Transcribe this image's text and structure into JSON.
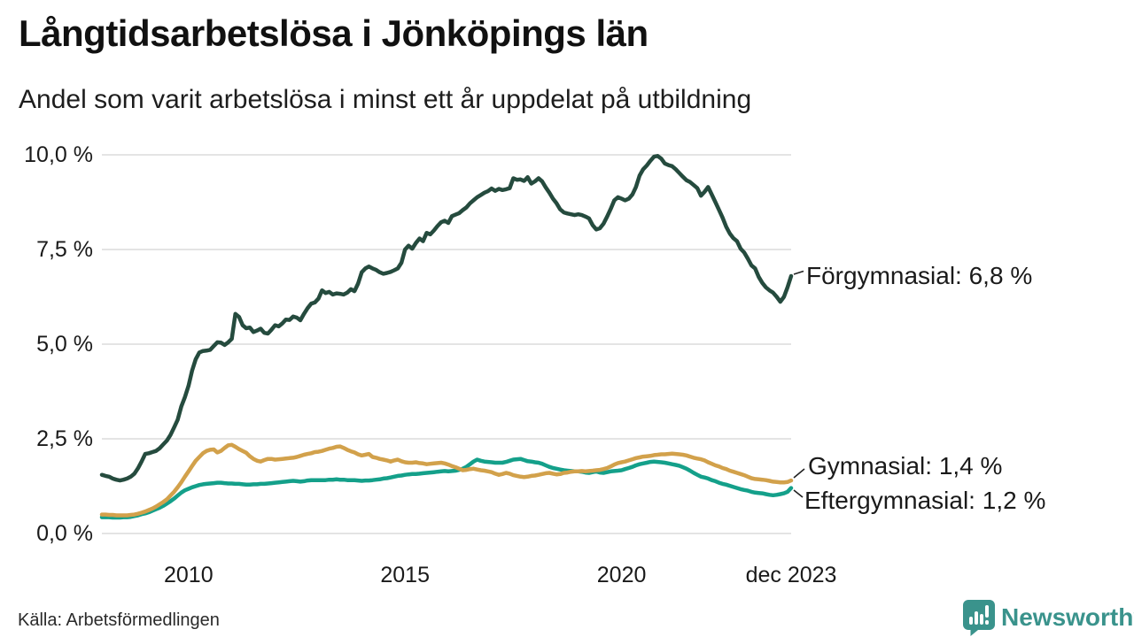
{
  "header": {
    "title": "Långtidsarbetslösa i Jönköpings län",
    "subtitle": "Andel som varit arbetslösa i minst ett år uppdelat på utbildning"
  },
  "footer": {
    "source": "Källa: Arbetsförmedlingen",
    "brand": "Newsworthy",
    "brand_color": "#3A938C",
    "logo_icon": "bar-chart-speech-bubble-icon"
  },
  "chart_data": {
    "type": "line",
    "x_start": "2008-01",
    "x_end": "2023-12",
    "x_interval": "month",
    "ylim": [
      0,
      10
    ],
    "grid": true,
    "y_ticks": [
      {
        "value": 0,
        "label": "0,0 %"
      },
      {
        "value": 2.5,
        "label": "2,5 %"
      },
      {
        "value": 5,
        "label": "5,0 %"
      },
      {
        "value": 7.5,
        "label": "7,5 %"
      },
      {
        "value": 10,
        "label": "10,0 %"
      }
    ],
    "x_ticks": [
      {
        "month_index": 24,
        "label": "2010"
      },
      {
        "month_index": 84,
        "label": "2015"
      },
      {
        "month_index": 144,
        "label": "2020"
      },
      {
        "month_index": 191,
        "label": "dec 2023"
      }
    ],
    "series": [
      {
        "name": "Förgymnasial",
        "label": "Förgymnasial: 6,8 %",
        "last_value": 6.8,
        "color": "#254B3E",
        "values": [
          1.55,
          1.52,
          1.5,
          1.45,
          1.42,
          1.4,
          1.42,
          1.45,
          1.5,
          1.58,
          1.72,
          1.9,
          2.1,
          2.12,
          2.15,
          2.18,
          2.25,
          2.35,
          2.45,
          2.6,
          2.8,
          3.0,
          3.35,
          3.6,
          3.9,
          4.3,
          4.6,
          4.78,
          4.82,
          4.83,
          4.85,
          4.95,
          5.05,
          5.04,
          4.98,
          5.05,
          5.14,
          5.8,
          5.72,
          5.5,
          5.42,
          5.44,
          5.32,
          5.36,
          5.41,
          5.3,
          5.28,
          5.38,
          5.5,
          5.47,
          5.55,
          5.65,
          5.64,
          5.73,
          5.7,
          5.63,
          5.8,
          5.95,
          6.07,
          6.1,
          6.2,
          6.42,
          6.35,
          6.38,
          6.31,
          6.34,
          6.33,
          6.31,
          6.36,
          6.45,
          6.4,
          6.6,
          6.9,
          7.0,
          7.05,
          7.0,
          6.96,
          6.9,
          6.86,
          6.88,
          6.91,
          6.95,
          7.0,
          7.15,
          7.5,
          7.6,
          7.52,
          7.67,
          7.79,
          7.72,
          7.94,
          7.9,
          8.0,
          8.12,
          8.22,
          8.26,
          8.2,
          8.38,
          8.42,
          8.46,
          8.54,
          8.61,
          8.72,
          8.8,
          8.88,
          8.94,
          9.0,
          9.04,
          9.11,
          9.05,
          9.1,
          9.07,
          9.09,
          9.12,
          9.38,
          9.34,
          9.35,
          9.31,
          9.41,
          9.24,
          9.3,
          9.38,
          9.3,
          9.14,
          9.0,
          8.84,
          8.72,
          8.56,
          8.48,
          8.45,
          8.43,
          8.41,
          8.43,
          8.41,
          8.37,
          8.32,
          8.14,
          8.03,
          8.06,
          8.18,
          8.37,
          8.57,
          8.8,
          8.88,
          8.84,
          8.8,
          8.84,
          8.95,
          9.15,
          9.45,
          9.62,
          9.72,
          9.84,
          9.95,
          9.97,
          9.9,
          9.77,
          9.73,
          9.7,
          9.62,
          9.52,
          9.42,
          9.33,
          9.28,
          9.2,
          9.12,
          8.92,
          9.02,
          9.15,
          8.95,
          8.75,
          8.55,
          8.34,
          8.1,
          7.92,
          7.8,
          7.72,
          7.52,
          7.42,
          7.26,
          7.08,
          7.0,
          6.78,
          6.62,
          6.5,
          6.42,
          6.36,
          6.25,
          6.12,
          6.25,
          6.5,
          6.8
        ]
      },
      {
        "name": "Gymnasial",
        "label": "Gymnasial: 1,4 %",
        "last_value": 1.4,
        "color": "#D2A14B",
        "values": [
          0.5,
          0.5,
          0.49,
          0.49,
          0.48,
          0.48,
          0.48,
          0.48,
          0.49,
          0.5,
          0.52,
          0.55,
          0.58,
          0.62,
          0.66,
          0.71,
          0.77,
          0.83,
          0.9,
          1.0,
          1.1,
          1.22,
          1.35,
          1.5,
          1.64,
          1.78,
          1.92,
          2.02,
          2.12,
          2.18,
          2.21,
          2.22,
          2.14,
          2.18,
          2.26,
          2.33,
          2.34,
          2.29,
          2.23,
          2.18,
          2.13,
          2.04,
          1.97,
          1.92,
          1.9,
          1.94,
          1.97,
          1.97,
          1.95,
          1.96,
          1.97,
          1.98,
          1.99,
          2.0,
          2.02,
          2.05,
          2.08,
          2.1,
          2.12,
          2.15,
          2.16,
          2.18,
          2.21,
          2.24,
          2.26,
          2.29,
          2.3,
          2.26,
          2.21,
          2.17,
          2.14,
          2.09,
          2.06,
          2.08,
          2.1,
          2.02,
          2.0,
          1.97,
          1.95,
          1.93,
          1.9,
          1.93,
          1.95,
          1.91,
          1.88,
          1.87,
          1.87,
          1.88,
          1.86,
          1.85,
          1.83,
          1.84,
          1.85,
          1.86,
          1.87,
          1.85,
          1.82,
          1.78,
          1.75,
          1.71,
          1.67,
          1.68,
          1.7,
          1.71,
          1.69,
          1.67,
          1.66,
          1.64,
          1.62,
          1.58,
          1.55,
          1.57,
          1.6,
          1.58,
          1.54,
          1.52,
          1.5,
          1.49,
          1.5,
          1.52,
          1.53,
          1.55,
          1.57,
          1.59,
          1.6,
          1.58,
          1.56,
          1.57,
          1.6,
          1.61,
          1.63,
          1.64,
          1.64,
          1.65,
          1.64,
          1.65,
          1.66,
          1.67,
          1.68,
          1.7,
          1.73,
          1.77,
          1.82,
          1.86,
          1.88,
          1.9,
          1.93,
          1.96,
          1.99,
          2.01,
          2.03,
          2.04,
          2.05,
          2.07,
          2.08,
          2.09,
          2.09,
          2.1,
          2.11,
          2.1,
          2.09,
          2.08,
          2.06,
          2.03,
          2.0,
          1.98,
          1.96,
          1.93,
          1.88,
          1.84,
          1.8,
          1.77,
          1.73,
          1.7,
          1.66,
          1.63,
          1.6,
          1.57,
          1.54,
          1.5,
          1.46,
          1.44,
          1.43,
          1.42,
          1.41,
          1.39,
          1.37,
          1.36,
          1.35,
          1.35,
          1.36,
          1.4
        ]
      },
      {
        "name": "Eftergymnasial",
        "label": "Eftergymnasial: 1,2 %",
        "last_value": 1.2,
        "color": "#14A08A",
        "values": [
          0.43,
          0.43,
          0.43,
          0.42,
          0.42,
          0.42,
          0.43,
          0.43,
          0.44,
          0.46,
          0.48,
          0.51,
          0.53,
          0.56,
          0.6,
          0.64,
          0.68,
          0.73,
          0.79,
          0.85,
          0.92,
          1.0,
          1.08,
          1.14,
          1.18,
          1.22,
          1.25,
          1.28,
          1.3,
          1.31,
          1.32,
          1.33,
          1.34,
          1.34,
          1.33,
          1.32,
          1.32,
          1.31,
          1.31,
          1.3,
          1.29,
          1.29,
          1.3,
          1.3,
          1.31,
          1.31,
          1.32,
          1.33,
          1.34,
          1.35,
          1.36,
          1.37,
          1.38,
          1.39,
          1.38,
          1.37,
          1.38,
          1.4,
          1.41,
          1.41,
          1.41,
          1.41,
          1.41,
          1.42,
          1.42,
          1.43,
          1.42,
          1.42,
          1.41,
          1.41,
          1.41,
          1.4,
          1.39,
          1.4,
          1.4,
          1.41,
          1.42,
          1.43,
          1.45,
          1.46,
          1.48,
          1.5,
          1.52,
          1.53,
          1.55,
          1.56,
          1.57,
          1.57,
          1.58,
          1.59,
          1.6,
          1.61,
          1.62,
          1.63,
          1.64,
          1.65,
          1.64,
          1.65,
          1.66,
          1.68,
          1.71,
          1.76,
          1.83,
          1.9,
          1.95,
          1.92,
          1.9,
          1.89,
          1.88,
          1.87,
          1.87,
          1.87,
          1.89,
          1.92,
          1.95,
          1.96,
          1.97,
          1.94,
          1.91,
          1.9,
          1.88,
          1.87,
          1.84,
          1.8,
          1.76,
          1.73,
          1.71,
          1.69,
          1.67,
          1.66,
          1.65,
          1.64,
          1.64,
          1.63,
          1.61,
          1.6,
          1.62,
          1.64,
          1.61,
          1.6,
          1.62,
          1.64,
          1.65,
          1.66,
          1.67,
          1.7,
          1.73,
          1.76,
          1.8,
          1.83,
          1.85,
          1.87,
          1.89,
          1.9,
          1.89,
          1.88,
          1.87,
          1.85,
          1.83,
          1.81,
          1.79,
          1.75,
          1.71,
          1.66,
          1.6,
          1.55,
          1.5,
          1.48,
          1.45,
          1.41,
          1.38,
          1.34,
          1.31,
          1.29,
          1.26,
          1.23,
          1.2,
          1.17,
          1.15,
          1.13,
          1.1,
          1.08,
          1.07,
          1.06,
          1.04,
          1.02,
          1.01,
          1.02,
          1.04,
          1.06,
          1.1,
          1.2
        ]
      }
    ]
  }
}
